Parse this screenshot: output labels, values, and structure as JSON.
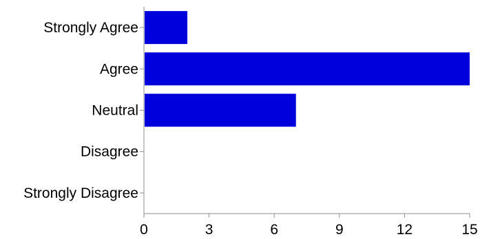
{
  "chart_data": {
    "type": "bar",
    "orientation": "horizontal",
    "title": "",
    "xlabel": "",
    "ylabel": "",
    "categories": [
      "Strongly Agree",
      "Agree",
      "Neutral",
      "Disagree",
      "Strongly Disagree"
    ],
    "values": [
      2,
      15,
      7,
      0,
      0
    ],
    "xlim": [
      0,
      15
    ],
    "xticks": [
      0,
      3,
      6,
      9,
      12,
      15
    ],
    "xtick_labels": [
      "0",
      "3",
      "6",
      "9",
      "12",
      "15"
    ],
    "grid": false,
    "legend": "none",
    "bar_color": "#0000dd",
    "axis_color": "#8c8c8c"
  }
}
